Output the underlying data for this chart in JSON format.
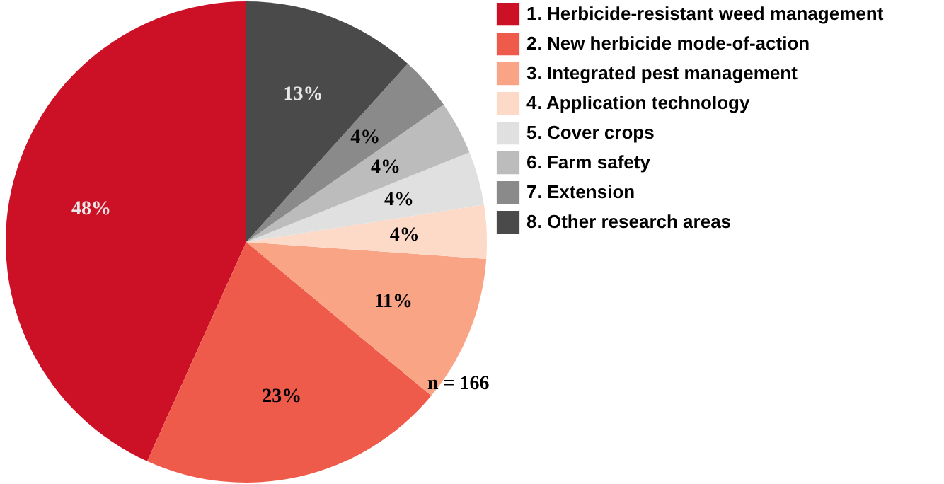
{
  "chart_data": {
    "type": "pie",
    "categories": [
      "1. Herbicide-resistant weed management",
      "2. New herbicide mode-of-action",
      "3. Integrated pest management",
      "4. Application technology",
      "5. Cover crops",
      "6. Farm safety",
      "7. Extension",
      "8. Other research areas"
    ],
    "values": [
      48,
      23,
      11,
      4,
      4,
      4,
      4,
      13
    ],
    "value_labels": [
      "48%",
      "23%",
      "11%",
      "4%",
      "4%",
      "4%",
      "4%",
      "13%"
    ],
    "colors": [
      "#cc1126",
      "#ef5b4a",
      "#f9a585",
      "#fddac8",
      "#e0e0e0",
      "#bcbcbc",
      "#8a8a8a",
      "#4a4a4a"
    ],
    "legend": "right",
    "annotations": [
      "n = 166"
    ]
  }
}
